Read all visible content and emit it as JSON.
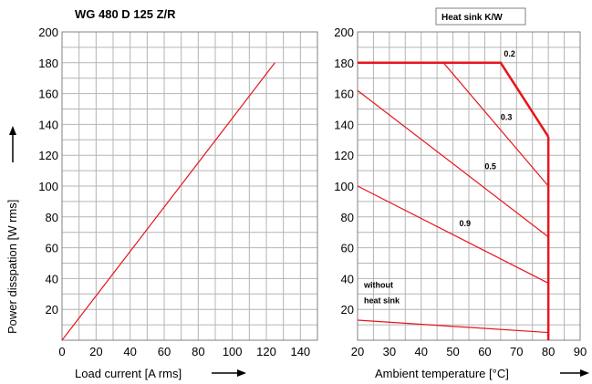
{
  "chart_data": [
    {
      "type": "line",
      "title": "WG 480 D 125 Z/R",
      "xlabel": "Load current [A rms]",
      "ylabel": "Power disspation [W rms]",
      "xlim": [
        0,
        150
      ],
      "ylim": [
        0,
        200
      ],
      "xticks": [
        "0",
        "20",
        "40",
        "60",
        "80",
        "100",
        "120",
        "140"
      ],
      "yticks": [
        "20",
        "40",
        "60",
        "80",
        "100",
        "120",
        "140",
        "160",
        "180",
        "200"
      ],
      "grid": true,
      "color": "#e8141c",
      "series": [
        {
          "name": "",
          "points": [
            [
              0,
              0
            ],
            [
              125,
              180
            ]
          ]
        }
      ]
    },
    {
      "type": "line",
      "title": "Heat sink K/W",
      "xlabel": "Ambient temperature [°C]",
      "ylabel": "",
      "xlim": [
        20,
        90
      ],
      "ylim": [
        0,
        200
      ],
      "xticks": [
        "20",
        "30",
        "40",
        "50",
        "60",
        "70",
        "80",
        "90"
      ],
      "yticks": [
        "20",
        "40",
        "60",
        "80",
        "100",
        "120",
        "140",
        "160",
        "180",
        "200"
      ],
      "grid": true,
      "color": "#e8141c",
      "series": [
        {
          "name": "0.2",
          "points": [
            [
              20,
              180
            ],
            [
              65,
              180
            ],
            [
              80,
              132
            ]
          ]
        },
        {
          "name": "0.3",
          "points": [
            [
              47,
              180
            ],
            [
              80,
              100
            ]
          ]
        },
        {
          "name": "0.5",
          "points": [
            [
              20,
              162
            ],
            [
              80,
              67
            ]
          ]
        },
        {
          "name": "0.9",
          "points": [
            [
              20,
              100
            ],
            [
              80,
              37
            ]
          ]
        },
        {
          "name": "without heat sink",
          "points": [
            [
              20,
              13
            ],
            [
              80,
              5
            ]
          ]
        }
      ],
      "limit_line": {
        "x": 80,
        "y": [
          0,
          132
        ]
      },
      "annotations": [
        {
          "text": "0.2",
          "x": 66,
          "y": 184
        },
        {
          "text": "0.3",
          "x": 65,
          "y": 143
        },
        {
          "text": "0.5",
          "x": 60,
          "y": 111
        },
        {
          "text": "0.9",
          "x": 52,
          "y": 74
        },
        {
          "text": "without",
          "x": 22,
          "y": 34
        },
        {
          "text": "heat sink",
          "x": 22,
          "y": 24
        }
      ]
    }
  ]
}
